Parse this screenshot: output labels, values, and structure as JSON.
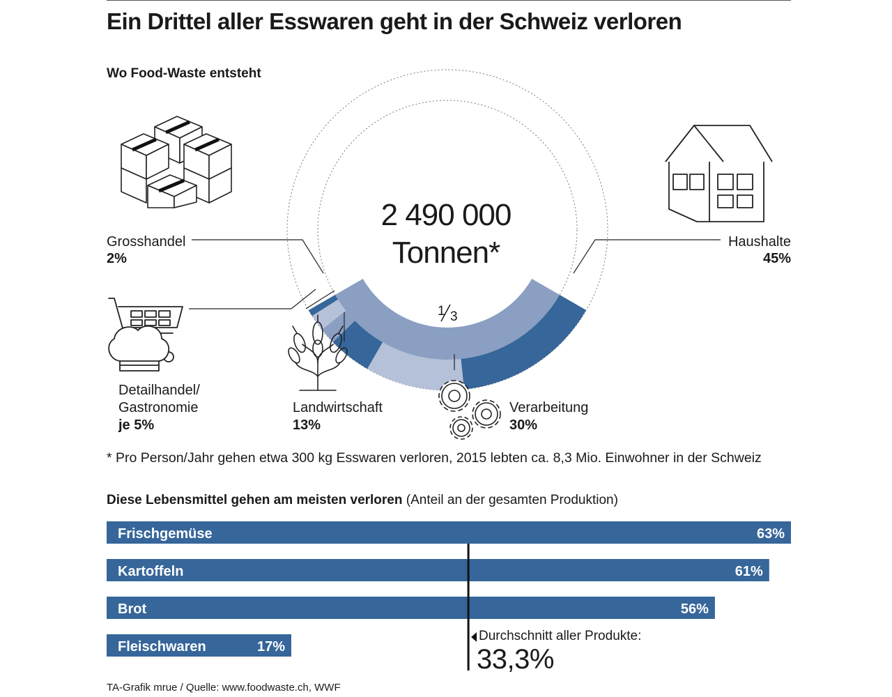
{
  "title": "Ein Drittel aller Esswaren geht in der Schweiz verloren",
  "subtitle": "Wo Food-Waste entsteht",
  "center": {
    "value": "2 490 000",
    "unit": "Tonnen*",
    "fraction_num": "1",
    "fraction_den": "3"
  },
  "sectors": [
    {
      "name": "Grosshandel",
      "pct_label": "2%",
      "icon": "boxes-icon"
    },
    {
      "name": "Detailhandel/",
      "name2": "Gastronomie",
      "pct_label": "je 5%",
      "icon": "shopping-cart-chef-hat-icon"
    },
    {
      "name": "Landwirtschaft",
      "pct_label": "13%",
      "icon": "wheat-icon"
    },
    {
      "name": "Verarbeitung",
      "pct_label": "30%",
      "icon": "gears-icon"
    },
    {
      "name": "Haushalte",
      "pct_label": "45%",
      "icon": "house-icon"
    }
  ],
  "footnote": "* Pro Person/Jahr gehen etwa 300 kg Esswaren verloren, 2015 lebten ca. 8,3 Mio. Einwohner in der Schweiz",
  "bars_title_bold": "Diese Lebensmittel gehen am meisten verloren",
  "bars_title_normal": " (Anteil an der gesamten Produktion)",
  "average": {
    "label": "Durchschnitt aller Produkte:",
    "value_label": "33,3%"
  },
  "source": "TA-Grafik mrue / Quelle: www.foodwaste.ch, WWF",
  "colors": {
    "dark": "#36669a",
    "mid": "#8a9fc2",
    "light": "#b5c1d8",
    "text": "#1a1a1a"
  },
  "chart_data": [
    {
      "type": "pie",
      "categories": [
        "Haushalte",
        "Verarbeitung",
        "Landwirtschaft",
        "Gastronomie",
        "Detailhandel",
        "Grosshandel"
      ],
      "values": [
        45,
        30,
        13,
        5,
        5,
        2
      ],
      "total_label": "2 490 000 Tonnen*"
    },
    {
      "type": "bar",
      "categories": [
        "Frischgemüse",
        "Kartoffeln",
        "Brot",
        "Fleischwaren"
      ],
      "values": [
        63,
        61,
        56,
        17
      ],
      "value_labels": [
        "63%",
        "61%",
        "56%",
        "17%"
      ],
      "reference_value": 33.3,
      "xlim": [
        0,
        63
      ]
    }
  ]
}
